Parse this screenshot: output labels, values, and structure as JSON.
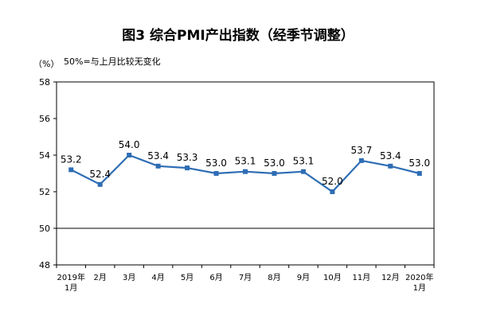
{
  "title": "图3  综合PMI产出指数（经季节调整）",
  "chart_data": {
    "type": "line",
    "title": "图3  综合PMI产出指数（经季节调整）",
    "unit_label": "（%）",
    "note": "50%=与上月比较无变化",
    "categories": [
      [
        "2019年",
        "1月"
      ],
      [
        "2月"
      ],
      [
        "3月"
      ],
      [
        "4月"
      ],
      [
        "5月"
      ],
      [
        "6月"
      ],
      [
        "7月"
      ],
      [
        "8月"
      ],
      [
        "9月"
      ],
      [
        "10月"
      ],
      [
        "11月"
      ],
      [
        "12月"
      ],
      [
        "2020年",
        "1月"
      ]
    ],
    "values": [
      53.2,
      52.4,
      54.0,
      53.4,
      53.3,
      53.0,
      53.1,
      53.0,
      53.1,
      52.0,
      53.7,
      53.4,
      53.0
    ],
    "value_labels": [
      "53.2",
      "52.4",
      "54.0",
      "53.4",
      "53.3",
      "53.0",
      "53.1",
      "53.0",
      "53.1",
      "52.0",
      "53.7",
      "53.4",
      "53.0"
    ],
    "yticks": [
      "48",
      "50",
      "52",
      "54",
      "56",
      "58"
    ],
    "ylim": [
      48,
      58
    ],
    "reference_line": 50,
    "grid": false,
    "line_color": "#2E6DB4"
  }
}
